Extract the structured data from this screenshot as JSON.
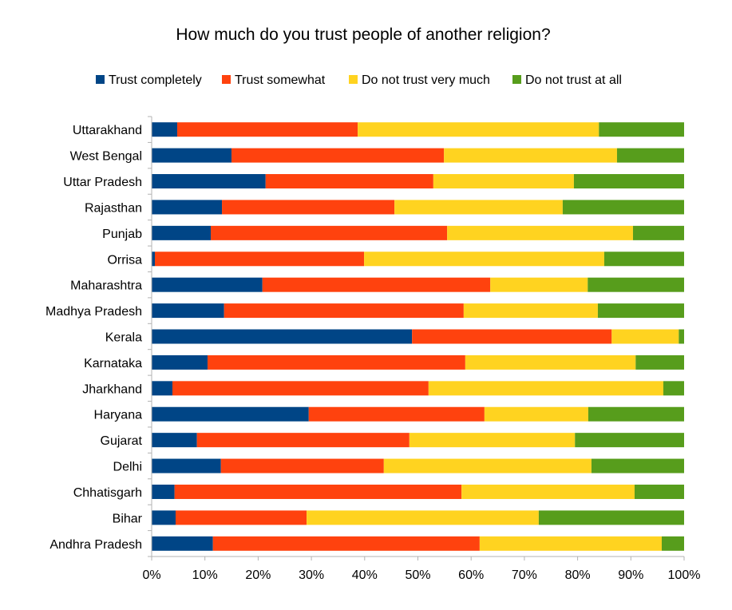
{
  "chart_data": {
    "type": "bar",
    "orientation": "horizontal",
    "stacked": "percent",
    "title": "How much do you trust people of another religion?",
    "xlabel": "",
    "ylabel": "",
    "xlim": [
      0,
      100
    ],
    "x_ticks": [
      "0%",
      "10%",
      "20%",
      "30%",
      "40%",
      "50%",
      "60%",
      "70%",
      "80%",
      "90%",
      "100%"
    ],
    "grid": false,
    "legend_position": "top",
    "categories": [
      "Uttarakhand",
      "West  Bengal",
      "Uttar  Pradesh",
      "Rajasthan",
      "Punjab",
      "Orrisa",
      "Maharashtra",
      "Madhya  Pradesh",
      "Kerala",
      "Karnataka",
      "Jharkhand",
      "Haryana",
      "Gujarat",
      "Delhi",
      "Chhatisgarh",
      "Bihar",
      "Andhra  Pradesh"
    ],
    "series": [
      {
        "name": "Trust  completely",
        "color": "#004586",
        "values": [
          4.8,
          15.0,
          21.4,
          13.2,
          11.1,
          0.6,
          20.8,
          13.6,
          48.9,
          10.5,
          3.9,
          29.5,
          8.5,
          13.0,
          4.3,
          4.5,
          11.5
        ]
      },
      {
        "name": "Trust  somewhat",
        "color": "#ff420e",
        "values": [
          33.9,
          39.9,
          31.5,
          32.4,
          44.4,
          39.3,
          42.8,
          45.0,
          37.5,
          48.4,
          48.1,
          33.0,
          39.9,
          30.6,
          53.9,
          24.6,
          50.1
        ]
      },
      {
        "name": "Do not trust very much",
        "color": "#ffd320",
        "values": [
          45.3,
          32.5,
          26.4,
          31.6,
          34.9,
          45.1,
          18.3,
          25.2,
          12.6,
          32.0,
          44.1,
          19.5,
          31.1,
          39.0,
          32.5,
          43.6,
          34.2
        ]
      },
      {
        "name": "Do not trust at all",
        "color": "#579d1c",
        "values": [
          16.0,
          12.6,
          20.7,
          22.8,
          9.6,
          15.0,
          18.1,
          16.2,
          1.0,
          9.1,
          3.9,
          18.0,
          20.5,
          17.4,
          9.3,
          27.3,
          4.2
        ]
      }
    ]
  }
}
